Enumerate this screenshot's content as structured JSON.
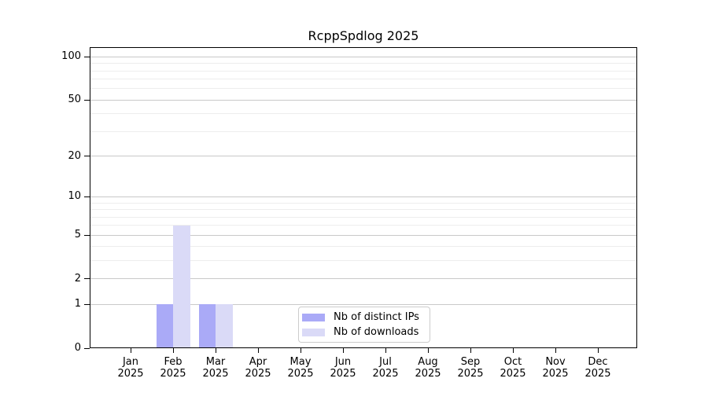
{
  "chart_data": {
    "type": "bar",
    "title": "RcppSpdlog 2025",
    "months": [
      "Jan",
      "Feb",
      "Mar",
      "Apr",
      "May",
      "Jun",
      "Jul",
      "Aug",
      "Sep",
      "Oct",
      "Nov",
      "Dec"
    ],
    "year_label": "2025",
    "series": [
      {
        "name": "Nb of distinct IPs",
        "color": "#aaaaf7",
        "values": [
          0,
          1,
          1,
          0,
          0,
          0,
          0,
          0,
          0,
          0,
          0,
          0
        ]
      },
      {
        "name": "Nb of downloads",
        "color": "#dadaf7",
        "values": [
          0,
          6,
          1,
          0,
          0,
          0,
          0,
          0,
          0,
          0,
          0,
          0
        ]
      }
    ],
    "y_axis": {
      "scale": "log1p",
      "tick_values": [
        0,
        1,
        2,
        5,
        10,
        20,
        50,
        100
      ],
      "minor_gridline_values": [
        3,
        4,
        6,
        7,
        8,
        9,
        30,
        40,
        60,
        70,
        80,
        90
      ],
      "ylim": [
        0,
        117
      ]
    },
    "legend": {
      "position": "lower center"
    },
    "grid": true,
    "colors": {
      "major_grid": "#c9c9c9",
      "minor_grid": "#ededed",
      "axis": "#000000",
      "text": "#000000",
      "background": "#ffffff",
      "legend_border": "#cccccc"
    }
  }
}
